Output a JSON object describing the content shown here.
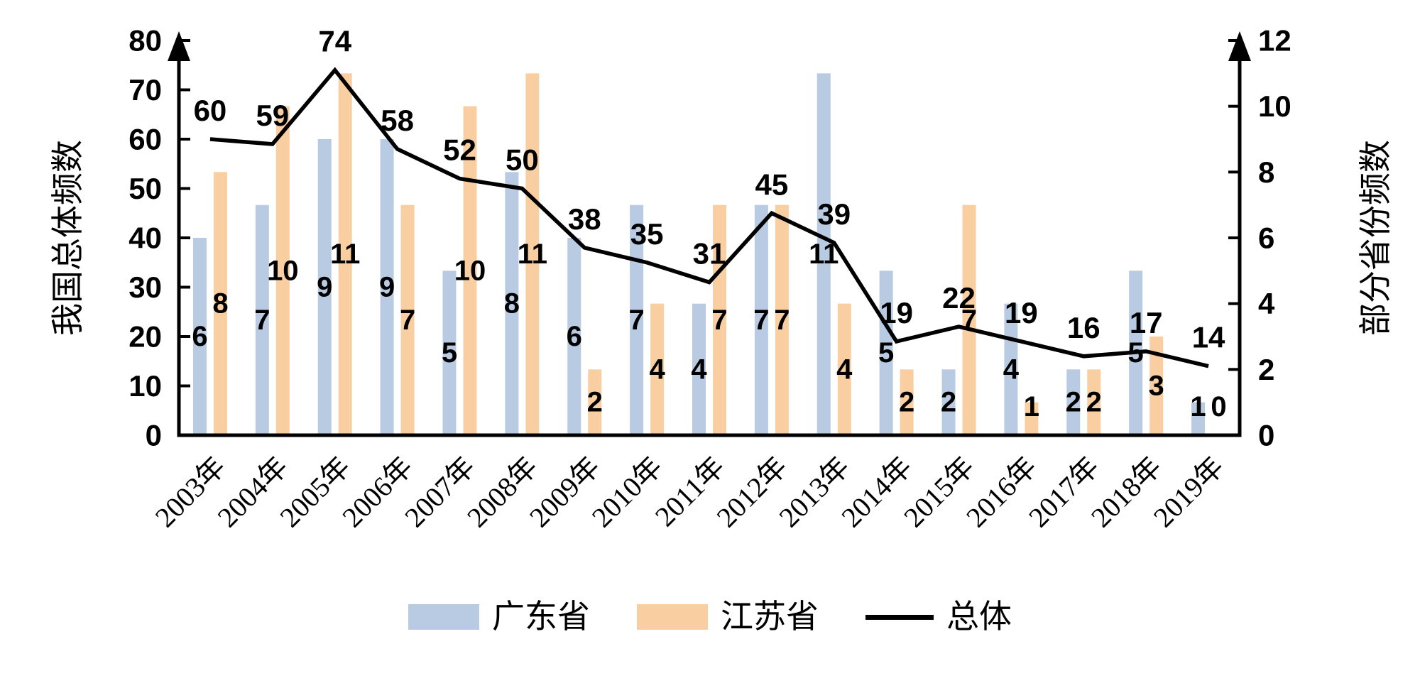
{
  "chart_data": {
    "type": "combo-bar-line",
    "title": "",
    "categories": [
      "2003年",
      "2004年",
      "2005年",
      "2006年",
      "2007年",
      "2008年",
      "2009年",
      "2010年",
      "2011年",
      "2012年",
      "2013年",
      "2014年",
      "2015年",
      "2016年",
      "2017年",
      "2018年",
      "2019年"
    ],
    "series": [
      {
        "name": "广东省",
        "type": "bar",
        "yaxis": "right",
        "color": "#b9cbe2",
        "values": [
          6,
          7,
          9,
          9,
          5,
          8,
          6,
          7,
          4,
          7,
          11,
          5,
          2,
          4,
          2,
          5,
          1
        ]
      },
      {
        "name": "江苏省",
        "type": "bar",
        "yaxis": "right",
        "color": "#f9cfa2",
        "values": [
          8,
          10,
          11,
          7,
          10,
          11,
          2,
          4,
          7,
          7,
          4,
          2,
          7,
          1,
          2,
          3,
          0
        ]
      },
      {
        "name": "总体",
        "type": "line",
        "yaxis": "left",
        "color": "#000000",
        "values": [
          60,
          59,
          74,
          58,
          52,
          50,
          38,
          35,
          31,
          45,
          39,
          19,
          22,
          19,
          16,
          17,
          14
        ]
      }
    ],
    "left_axis": {
      "title": "我国总体频数",
      "min": 0,
      "max": 80,
      "ticks": [
        0,
        10,
        20,
        30,
        40,
        50,
        60,
        70,
        80
      ]
    },
    "right_axis": {
      "title": "部分省份频数",
      "min": 0,
      "max": 12,
      "ticks": [
        0,
        2,
        4,
        6,
        8,
        10,
        12
      ]
    },
    "grid": false,
    "data_labels": true,
    "legend_position": "bottom",
    "x_label_rotation_deg": -45,
    "axis_color": "#000000"
  }
}
